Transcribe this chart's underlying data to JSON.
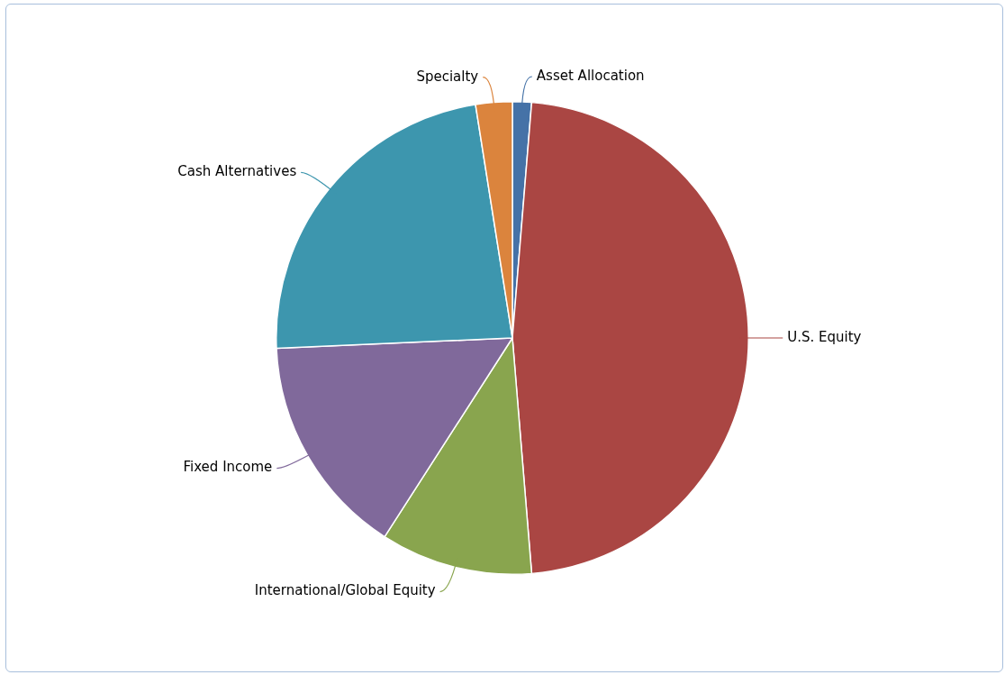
{
  "chart_data": {
    "type": "pie",
    "categories": [
      "Asset Allocation",
      "U.S. Equity",
      "International/Global Equity",
      "Fixed Income",
      "Cash Alternatives",
      "Specialty"
    ],
    "values": [
      1.3,
      47.4,
      10.4,
      15.2,
      23.2,
      2.5
    ],
    "colors": [
      "#4572a7",
      "#aa4643",
      "#89a54e",
      "#80699b",
      "#3d96ae",
      "#db843d"
    ],
    "legend": false
  }
}
